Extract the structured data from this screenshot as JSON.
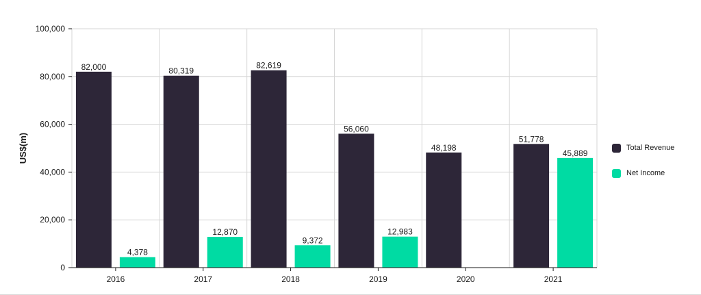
{
  "chart_data": {
    "type": "bar",
    "categories": [
      "2016",
      "2017",
      "2018",
      "2019",
      "2020",
      "2021"
    ],
    "series": [
      {
        "name": "Total Revenue",
        "color": "#2d2638",
        "values": [
          82000,
          80319,
          82619,
          56060,
          48198,
          51778
        ],
        "labels": [
          "82,000",
          "80,319",
          "82,619",
          "56,060",
          "48,198",
          "51,778"
        ]
      },
      {
        "name": "Net Income",
        "color": "#00dba3",
        "values": [
          4378,
          12870,
          9372,
          12983,
          null,
          45889
        ],
        "labels": [
          "4,378",
          "12,870",
          "9,372",
          "12,983",
          null,
          "45,889"
        ]
      }
    ],
    "ylabel": "US$(m)",
    "ylim": [
      0,
      100000
    ],
    "yticks": [
      "0",
      "20,000",
      "40,000",
      "60,000",
      "80,000",
      "100,000"
    ],
    "grid": true,
    "legend_position": "right"
  }
}
